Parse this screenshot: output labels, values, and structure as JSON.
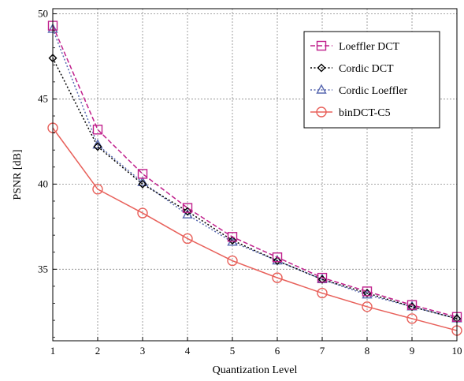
{
  "chart_data": {
    "type": "line",
    "title": "",
    "xlabel": "Quantization Level",
    "ylabel": "PSNR [dB]",
    "xlim": [
      1,
      10
    ],
    "ylim": [
      30.8,
      50.3
    ],
    "x_ticks": [
      "1",
      "2",
      "3",
      "4",
      "5",
      "6",
      "7",
      "8",
      "9",
      "10"
    ],
    "y_ticks": [
      "35",
      "40",
      "45",
      "50"
    ],
    "grid": true,
    "legend_position": "top-right",
    "x": [
      1,
      2,
      3,
      4,
      5,
      6,
      7,
      8,
      9,
      10
    ],
    "series": [
      {
        "name": "Loeffler DCT",
        "color": "#c0208c",
        "marker": "square",
        "line_style": "dashed",
        "values": [
          49.3,
          43.2,
          40.6,
          38.6,
          36.9,
          35.7,
          34.5,
          33.7,
          32.9,
          32.2
        ]
      },
      {
        "name": "Cordic DCT",
        "color": "#000000",
        "marker": "diamond",
        "line_style": "dotted",
        "values": [
          47.4,
          42.2,
          40.0,
          38.4,
          36.7,
          35.5,
          34.4,
          33.6,
          32.8,
          32.1
        ]
      },
      {
        "name": "Cordic Loeffler",
        "color": "#5868b0",
        "marker": "triangle",
        "line_style": "dotted",
        "values": [
          49.1,
          42.3,
          40.1,
          38.2,
          36.6,
          35.5,
          34.4,
          33.5,
          32.8,
          32.1
        ]
      },
      {
        "name": "binDCT-C5",
        "color": "#e8605a",
        "marker": "circle",
        "line_style": "solid",
        "values": [
          43.3,
          39.7,
          38.3,
          36.8,
          35.5,
          34.5,
          33.6,
          32.8,
          32.1,
          31.4
        ]
      }
    ]
  }
}
